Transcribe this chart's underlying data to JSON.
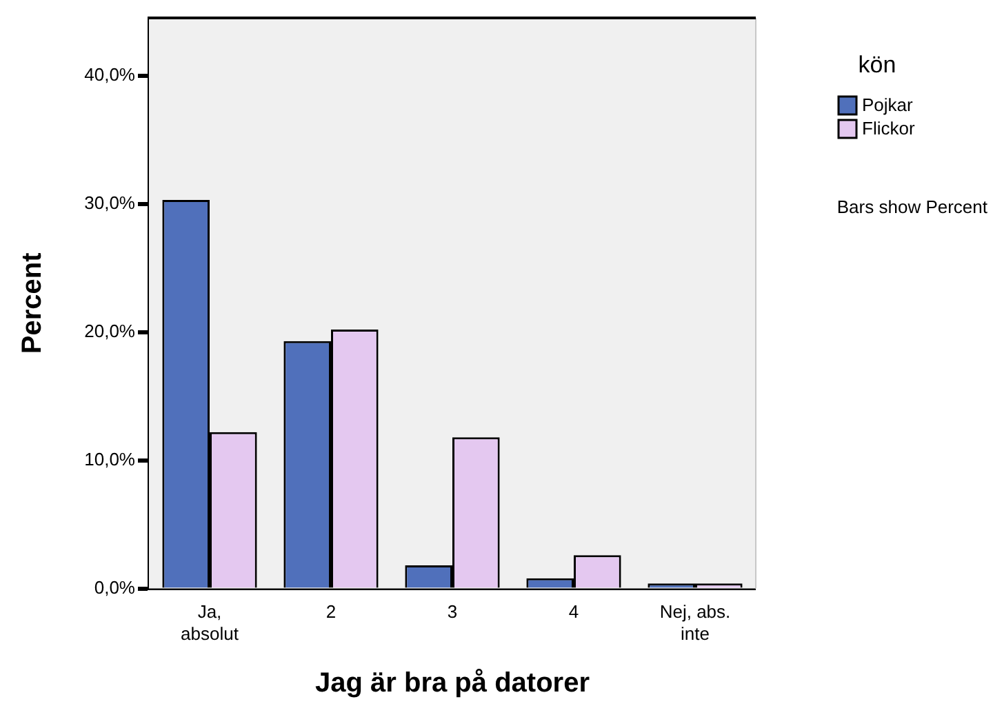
{
  "chart_data": {
    "type": "bar",
    "xlabel": "Jag är bra på datorer",
    "ylabel": "Percent",
    "legend_title": "kön",
    "legend": "top right",
    "grid": false,
    "categories": [
      "Ja, absolut",
      "2",
      "3",
      "4",
      "Nej, abs. inte"
    ],
    "series": [
      {
        "name": "Pojkar",
        "color": "#5070bb",
        "values": [
          30.3,
          19.3,
          1.8,
          0.8,
          0.4
        ]
      },
      {
        "name": "Flickor",
        "color": "#e4c8f0",
        "values": [
          12.2,
          20.2,
          11.8,
          2.6,
          0.4
        ]
      }
    ],
    "ylim": [
      0,
      44.5
    ],
    "yticks": [
      {
        "value": 0,
        "label": "0,0%"
      },
      {
        "value": 10,
        "label": "10,0%"
      },
      {
        "value": 20,
        "label": "20,0%"
      },
      {
        "value": 30,
        "label": "30,0%"
      },
      {
        "value": 40,
        "label": "40,0%"
      }
    ],
    "annotations": [
      "Bars show Percent"
    ]
  }
}
